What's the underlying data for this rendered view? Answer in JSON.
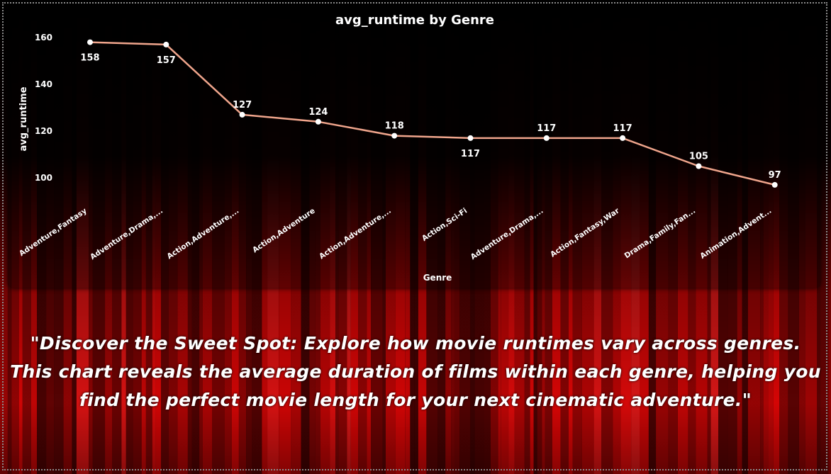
{
  "chart_data": {
    "type": "line",
    "title": "avg_runtime by Genre",
    "xlabel": "Genre",
    "ylabel": "avg_runtime",
    "categories": [
      "Adventure,Fantasy",
      "Adventure,Drama,...",
      "Action,Adventure,...",
      "Action,Adventure",
      "Action,Adventure,...",
      "Action,Sci-Fi",
      "Adventure,Drama,...",
      "Action,Fantasy,War",
      "Drama,Family,Fan...",
      "Animation,Advent..."
    ],
    "values": [
      158,
      157,
      127,
      124,
      118,
      117,
      117,
      117,
      105,
      97
    ],
    "data_labels": [
      "158",
      "157",
      "127",
      "124",
      "118",
      "117",
      "117",
      "117",
      "105",
      "97"
    ],
    "yticks": [
      100,
      120,
      140,
      160
    ],
    "ylim": [
      90,
      162
    ],
    "line_color": "#f0a58c",
    "grid": false,
    "legend": "none"
  },
  "caption": "\"Discover the Sweet Spot: Explore how movie runtimes vary across genres. This chart reveals the average duration of films within each genre, helping you find the perfect movie length for your next cinematic adventure.\"",
  "theme": {
    "background": "red stage curtain",
    "accent": "#e00000"
  }
}
